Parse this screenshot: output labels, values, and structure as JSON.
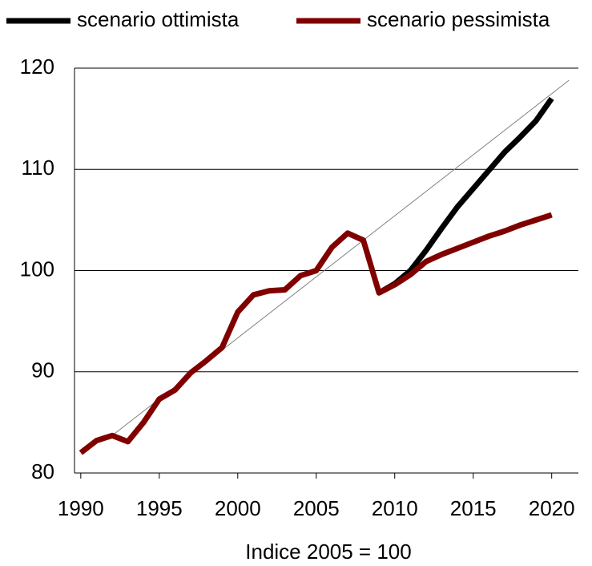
{
  "chart_data": {
    "type": "line",
    "xlabel": "Indice 2005 = 100",
    "x": [
      1990,
      1991,
      1992,
      1993,
      1994,
      1995,
      1996,
      1997,
      1998,
      1999,
      2000,
      2001,
      2002,
      2003,
      2004,
      2005,
      2006,
      2007,
      2008,
      2009,
      2010,
      2011,
      2012,
      2013,
      2014,
      2015,
      2016,
      2017,
      2018,
      2019,
      2020
    ],
    "series": [
      {
        "name": "scenario ottimista",
        "color": "#000000",
        "values": [
          null,
          null,
          null,
          null,
          null,
          null,
          null,
          null,
          null,
          null,
          null,
          null,
          null,
          null,
          null,
          null,
          null,
          null,
          null,
          97.8,
          98.7,
          100.0,
          102.0,
          104.2,
          106.3,
          108.1,
          109.9,
          111.7,
          113.2,
          114.8,
          117.0
        ]
      },
      {
        "name": "scenario pessimista",
        "color": "#800000",
        "values": [
          82.0,
          83.2,
          83.7,
          83.1,
          85.0,
          87.3,
          88.2,
          89.9,
          91.1,
          92.4,
          95.9,
          97.6,
          98.0,
          98.1,
          99.5,
          100,
          102.3,
          103.7,
          103.0,
          97.8,
          98.6,
          99.6,
          100.9,
          101.6,
          102.2,
          102.8,
          103.4,
          103.9,
          104.5,
          105.0,
          105.5
        ]
      }
    ],
    "trendline": {
      "x": [
        1992,
        2021.1
      ],
      "values": [
        83.7,
        118.8
      ],
      "color": "#808080"
    },
    "xlim": [
      1989.6,
      2021.7
    ],
    "ylim": [
      80,
      120
    ],
    "xticks": [
      1990,
      1995,
      2000,
      2005,
      2010,
      2015,
      2020
    ],
    "yticks": [
      80,
      90,
      100,
      110,
      120
    ],
    "grid": true,
    "legend": "top"
  }
}
